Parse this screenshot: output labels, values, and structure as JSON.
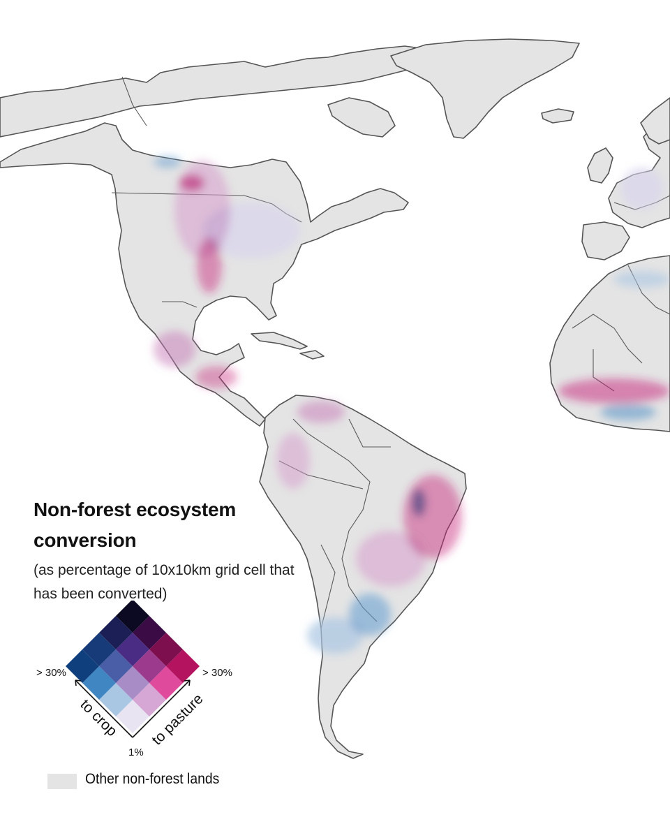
{
  "legend": {
    "title": "Non-forest ecosystem conversion",
    "subtitle": "(as percentage of 10x10km grid cell that has been converted)",
    "axis_crop_label": "to crop",
    "axis_pasture_label": "to pasture",
    "high_left_label": "> 30%",
    "high_right_label": "> 30%",
    "low_label": "1%",
    "other_lands_label": "Other non-forest lands",
    "grid_colors": [
      [
        "#e9e4f2",
        "#d6a6d4",
        "#e04a9c",
        "#b3135f"
      ],
      [
        "#a9c6e3",
        "#a88cc6",
        "#9c3a8e",
        "#7d0f4f"
      ],
      [
        "#3f86c2",
        "#4a5ea8",
        "#4b2c84",
        "#3b0b45"
      ],
      [
        "#0f3f7c",
        "#173a78",
        "#1c1f56",
        "#0c0a22"
      ]
    ]
  },
  "colors": {
    "land": "#e4e4e4",
    "coastline": "#555555",
    "crop_conversion": "#2f7fbf",
    "pasture_conversion": "#c81f7a",
    "mixed_conversion": "#5a1a6e"
  }
}
